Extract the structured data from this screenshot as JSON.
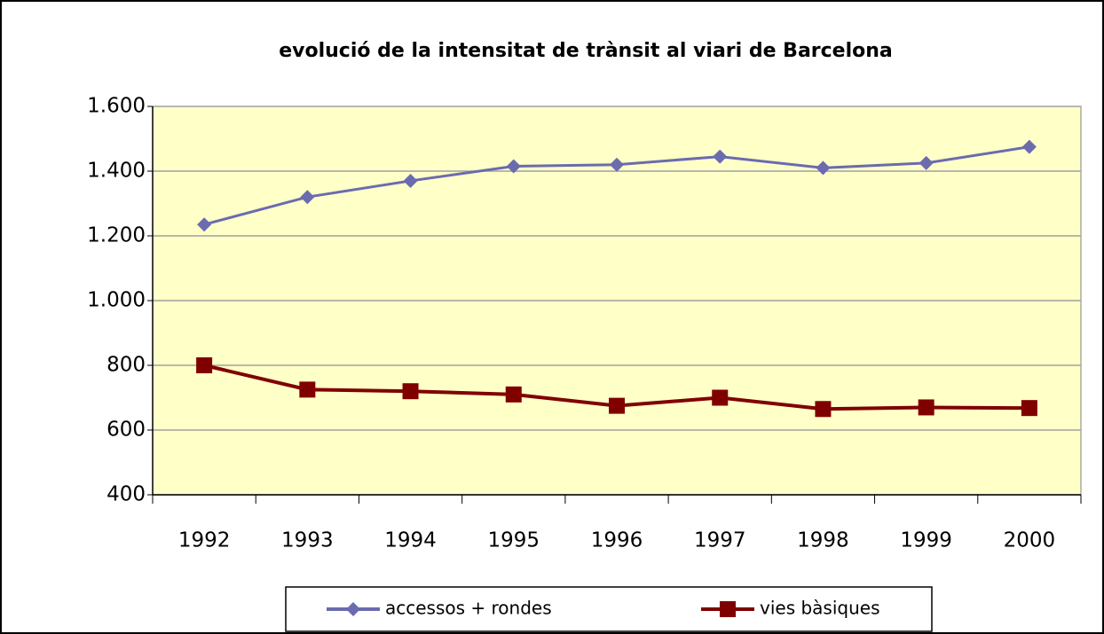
{
  "chart_data": {
    "type": "line",
    "title": "evolució de la intensitat de trànsit al viari de Barcelona",
    "categories": [
      "1992",
      "1993",
      "1994",
      "1995",
      "1996",
      "1997",
      "1998",
      "1999",
      "2000"
    ],
    "series": [
      {
        "name": "accessos + rondes",
        "color": "#6b6baf",
        "marker": "diamond",
        "values": [
          1235,
          1320,
          1370,
          1415,
          1420,
          1445,
          1410,
          1425,
          1475
        ]
      },
      {
        "name": "vies bàsiques",
        "color": "#800000",
        "marker": "square",
        "values": [
          800,
          725,
          720,
          710,
          675,
          700,
          665,
          670,
          668
        ]
      }
    ],
    "ylim": [
      400,
      1600
    ],
    "yticks": [
      400,
      600,
      800,
      {
        "value": 1000,
        "label": "1.000"
      },
      {
        "value": 1200,
        "label": "1.200"
      },
      {
        "value": 1400,
        "label": "1.400"
      },
      {
        "value": 1600,
        "label": "1.600"
      }
    ],
    "grid": true,
    "legend": "bottom"
  }
}
